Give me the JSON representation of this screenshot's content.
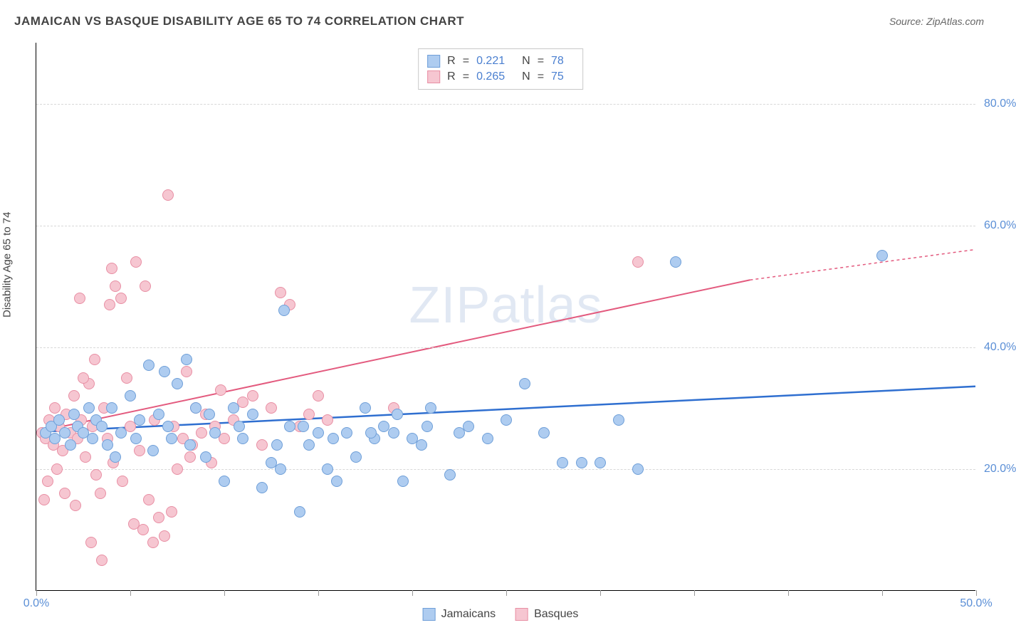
{
  "title": "JAMAICAN VS BASQUE DISABILITY AGE 65 TO 74 CORRELATION CHART",
  "source_label": "Source:",
  "source_name": "ZipAtlas.com",
  "y_axis_label": "Disability Age 65 to 74",
  "watermark_left": "ZIP",
  "watermark_right": "atlas",
  "chart": {
    "type": "scatter",
    "xlim": [
      0,
      50
    ],
    "ylim": [
      0,
      90
    ],
    "x_ticks": [
      0,
      5,
      10,
      15,
      20,
      25,
      30,
      35,
      40,
      45,
      50
    ],
    "x_tick_labels": {
      "0": "0.0%",
      "50": "50.0%"
    },
    "y_gridlines": [
      20,
      40,
      60,
      80
    ],
    "y_tick_labels": {
      "20": "20.0%",
      "40": "40.0%",
      "60": "60.0%",
      "80": "80.0%"
    },
    "background_color": "#ffffff",
    "grid_color": "#d8d8d8",
    "axis_fontsize": 16,
    "title_fontsize": 17,
    "marker_radius": 8,
    "series": {
      "jamaicans": {
        "label": "Jamaicans",
        "fill": "#aeccf0",
        "stroke": "#6f9fd8",
        "R": "0.221",
        "N": "78",
        "trend": {
          "x1": 0,
          "y1": 26,
          "x2": 50,
          "y2": 33.5,
          "color": "#2f6fd0",
          "width": 2.5,
          "dash": "none"
        },
        "points": [
          [
            0.5,
            26
          ],
          [
            0.8,
            27
          ],
          [
            1.0,
            25
          ],
          [
            1.2,
            28
          ],
          [
            1.5,
            26
          ],
          [
            1.8,
            24
          ],
          [
            2.0,
            29
          ],
          [
            2.2,
            27
          ],
          [
            2.5,
            26
          ],
          [
            2.8,
            30
          ],
          [
            3.0,
            25
          ],
          [
            3.2,
            28
          ],
          [
            3.5,
            27
          ],
          [
            4.0,
            30
          ],
          [
            4.5,
            26
          ],
          [
            5.0,
            32
          ],
          [
            5.5,
            28
          ],
          [
            6.0,
            37
          ],
          [
            6.5,
            29
          ],
          [
            6.8,
            36
          ],
          [
            7.0,
            27
          ],
          [
            7.5,
            34
          ],
          [
            8.0,
            38
          ],
          [
            8.5,
            30
          ],
          [
            9.0,
            22
          ],
          [
            9.5,
            26
          ],
          [
            10.0,
            18
          ],
          [
            10.5,
            30
          ],
          [
            11.0,
            25
          ],
          [
            11.5,
            29
          ],
          [
            12.0,
            17
          ],
          [
            12.5,
            21
          ],
          [
            13.0,
            20
          ],
          [
            13.2,
            46
          ],
          [
            13.5,
            27
          ],
          [
            14.0,
            13
          ],
          [
            14.5,
            24
          ],
          [
            15.0,
            26
          ],
          [
            15.5,
            20
          ],
          [
            16.0,
            18
          ],
          [
            16.5,
            26
          ],
          [
            17.0,
            22
          ],
          [
            17.5,
            30
          ],
          [
            18.0,
            25
          ],
          [
            18.5,
            27
          ],
          [
            19.0,
            26
          ],
          [
            19.5,
            18
          ],
          [
            20.0,
            25
          ],
          [
            20.5,
            24
          ],
          [
            21.0,
            30
          ],
          [
            22.0,
            19
          ],
          [
            22.5,
            26
          ],
          [
            23.0,
            27
          ],
          [
            25.0,
            28
          ],
          [
            26.0,
            34
          ],
          [
            28.0,
            21
          ],
          [
            29.0,
            21
          ],
          [
            31.0,
            28
          ],
          [
            34.0,
            54
          ],
          [
            45.0,
            55
          ],
          [
            3.8,
            24
          ],
          [
            4.2,
            22
          ],
          [
            5.3,
            25
          ],
          [
            6.2,
            23
          ],
          [
            7.2,
            25
          ],
          [
            8.2,
            24
          ],
          [
            9.2,
            29
          ],
          [
            10.8,
            27
          ],
          [
            12.8,
            24
          ],
          [
            14.2,
            27
          ],
          [
            15.8,
            25
          ],
          [
            17.8,
            26
          ],
          [
            19.2,
            29
          ],
          [
            20.8,
            27
          ],
          [
            24.0,
            25
          ],
          [
            27.0,
            26
          ],
          [
            30.0,
            21
          ],
          [
            32.0,
            20
          ]
        ]
      },
      "basques": {
        "label": "Basques",
        "fill": "#f6c6d1",
        "stroke": "#e88fa4",
        "R": "0.265",
        "N": "75",
        "trend": {
          "x1": 0,
          "y1": 26,
          "x2": 38,
          "y2": 51,
          "color": "#e35a7e",
          "width": 2,
          "dash": "none"
        },
        "trend_dashed": {
          "x1": 38,
          "y1": 51,
          "x2": 50,
          "y2": 56,
          "color": "#e35a7e",
          "width": 1.5,
          "dash": "4 4"
        },
        "points": [
          [
            0.3,
            26
          ],
          [
            0.5,
            25
          ],
          [
            0.7,
            28
          ],
          [
            0.9,
            24
          ],
          [
            1.0,
            30
          ],
          [
            1.2,
            27
          ],
          [
            1.4,
            23
          ],
          [
            1.6,
            29
          ],
          [
            1.8,
            26
          ],
          [
            2.0,
            32
          ],
          [
            2.2,
            25
          ],
          [
            2.4,
            28
          ],
          [
            2.6,
            22
          ],
          [
            2.8,
            34
          ],
          [
            3.0,
            27
          ],
          [
            3.2,
            19
          ],
          [
            3.4,
            16
          ],
          [
            3.6,
            30
          ],
          [
            3.8,
            25
          ],
          [
            4.0,
            53
          ],
          [
            4.2,
            50
          ],
          [
            4.5,
            48
          ],
          [
            4.8,
            35
          ],
          [
            5.0,
            27
          ],
          [
            5.3,
            54
          ],
          [
            5.5,
            23
          ],
          [
            5.8,
            50
          ],
          [
            6.0,
            15
          ],
          [
            6.3,
            28
          ],
          [
            6.5,
            12
          ],
          [
            6.8,
            9
          ],
          [
            7.0,
            65
          ],
          [
            7.3,
            27
          ],
          [
            7.5,
            20
          ],
          [
            7.8,
            25
          ],
          [
            8.0,
            36
          ],
          [
            8.3,
            24
          ],
          [
            8.5,
            30
          ],
          [
            8.8,
            26
          ],
          [
            9.0,
            29
          ],
          [
            9.3,
            21
          ],
          [
            9.5,
            27
          ],
          [
            9.8,
            33
          ],
          [
            10.0,
            25
          ],
          [
            10.5,
            28
          ],
          [
            11.0,
            31
          ],
          [
            11.5,
            32
          ],
          [
            12.0,
            24
          ],
          [
            12.5,
            30
          ],
          [
            13.0,
            49
          ],
          [
            13.5,
            47
          ],
          [
            14.0,
            27
          ],
          [
            14.5,
            29
          ],
          [
            15.0,
            32
          ],
          [
            0.4,
            15
          ],
          [
            0.6,
            18
          ],
          [
            1.1,
            20
          ],
          [
            1.5,
            16
          ],
          [
            2.1,
            14
          ],
          [
            2.5,
            35
          ],
          [
            2.9,
            8
          ],
          [
            3.1,
            38
          ],
          [
            3.5,
            5
          ],
          [
            4.1,
            21
          ],
          [
            4.6,
            18
          ],
          [
            5.2,
            11
          ],
          [
            5.7,
            10
          ],
          [
            6.2,
            8
          ],
          [
            7.2,
            13
          ],
          [
            8.2,
            22
          ],
          [
            15.5,
            28
          ],
          [
            19.0,
            30
          ],
          [
            32.0,
            54
          ],
          [
            2.3,
            48
          ],
          [
            3.9,
            47
          ]
        ]
      }
    }
  },
  "legend_R_label": "R",
  "legend_N_label": "N",
  "legend_eq": "="
}
